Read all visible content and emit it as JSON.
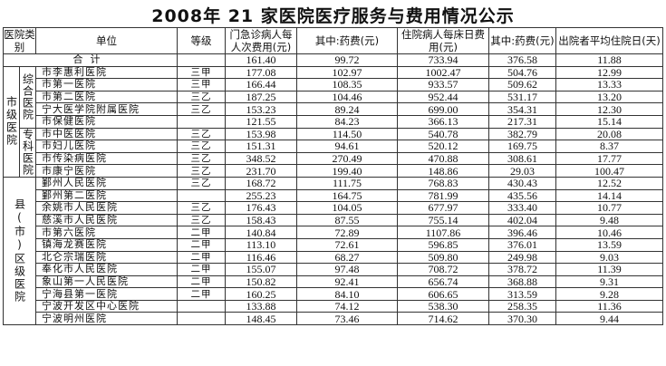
{
  "title": "2008年 21 家医院医疗服务与费用情况公示",
  "headers": {
    "category": "医院类别",
    "unit": "单位",
    "grade": "等级",
    "outpatient_cost": "门急诊病人每人次费用(元)",
    "outpatient_drug": "其中:药费(元)",
    "inpatient_cost": "住院病人每床日费用(元)",
    "inpatient_drug": "其中:药费(元)",
    "avg_stay": "出院者平均住院日(天)"
  },
  "total": {
    "label": "合计",
    "outpatient_cost": "161.40",
    "outpatient_drug": "99.72",
    "inpatient_cost": "733.94",
    "inpatient_drug": "376.58",
    "avg_stay": "11.88"
  },
  "groups": {
    "city_level": "市级医院",
    "comprehensive": "综合医院",
    "specialty": "专科医院",
    "county_level": "县(市)区级医院"
  },
  "rows": [
    {
      "unit": "市李惠利医院",
      "grade": "三甲",
      "oc": "177.08",
      "od": "102.97",
      "ic": "1002.47",
      "id": "504.76",
      "st": "12.99"
    },
    {
      "unit": "市第一医院",
      "grade": "三甲",
      "oc": "166.44",
      "od": "108.35",
      "ic": "933.57",
      "id": "509.62",
      "st": "13.33"
    },
    {
      "unit": "市第二医院",
      "grade": "三乙",
      "oc": "187.25",
      "od": "104.46",
      "ic": "952.44",
      "id": "531.17",
      "st": "13.20"
    },
    {
      "unit": "宁大医学院附属医院",
      "grade": "三乙",
      "oc": "153.23",
      "od": "89.24",
      "ic": "699.00",
      "id": "354.31",
      "st": "12.30"
    },
    {
      "unit": "市保健医院",
      "grade": "",
      "oc": "121.55",
      "od": "84.23",
      "ic": "366.13",
      "id": "217.31",
      "st": "15.14"
    },
    {
      "unit": "市中医医院",
      "grade": "三乙",
      "oc": "153.98",
      "od": "114.50",
      "ic": "540.78",
      "id": "382.79",
      "st": "20.08"
    },
    {
      "unit": "市妇儿医院",
      "grade": "三乙",
      "oc": "151.31",
      "od": "94.61",
      "ic": "520.12",
      "id": "169.75",
      "st": "8.37"
    },
    {
      "unit": "市传染病医院",
      "grade": "三乙",
      "oc": "348.52",
      "od": "270.49",
      "ic": "470.88",
      "id": "308.61",
      "st": "17.77"
    },
    {
      "unit": "市康宁医院",
      "grade": "三乙",
      "oc": "231.70",
      "od": "199.40",
      "ic": "148.86",
      "id": "29.03",
      "st": "100.47"
    },
    {
      "unit": "鄞州人民医院",
      "grade": "三乙",
      "oc": "168.72",
      "od": "111.75",
      "ic": "768.83",
      "id": "430.43",
      "st": "12.52"
    },
    {
      "unit": "鄞州第二医院",
      "grade": "",
      "oc": "255.23",
      "od": "164.75",
      "ic": "781.99",
      "id": "435.56",
      "st": "14.14"
    },
    {
      "unit": "余姚市人民医院",
      "grade": "三乙",
      "oc": "176.43",
      "od": "104.05",
      "ic": "677.97",
      "id": "333.40",
      "st": "10.77"
    },
    {
      "unit": "慈溪市人民医院",
      "grade": "三乙",
      "oc": "158.43",
      "od": "87.55",
      "ic": "755.14",
      "id": "402.04",
      "st": "9.48"
    },
    {
      "unit": "市第六医院",
      "grade": "二甲",
      "oc": "140.84",
      "od": "72.89",
      "ic": "1107.86",
      "id": "396.46",
      "st": "10.46"
    },
    {
      "unit": "镇海龙赛医院",
      "grade": "二甲",
      "oc": "113.10",
      "od": "72.61",
      "ic": "596.85",
      "id": "376.01",
      "st": "13.59"
    },
    {
      "unit": "北仑宗瑞医院",
      "grade": "二甲",
      "oc": "116.46",
      "od": "68.27",
      "ic": "509.80",
      "id": "249.98",
      "st": "9.03"
    },
    {
      "unit": "奉化市人民医院",
      "grade": "二甲",
      "oc": "155.07",
      "od": "97.48",
      "ic": "708.72",
      "id": "378.72",
      "st": "11.39"
    },
    {
      "unit": "象山第一人民医院",
      "grade": "二甲",
      "oc": "150.82",
      "od": "92.41",
      "ic": "656.74",
      "id": "368.88",
      "st": "9.31"
    },
    {
      "unit": "宁海县第一医院",
      "grade": "二甲",
      "oc": "160.25",
      "od": "84.10",
      "ic": "606.65",
      "id": "313.59",
      "st": "9.28"
    },
    {
      "unit": "宁波开发区中心医院",
      "grade": "",
      "oc": "133.88",
      "od": "74.12",
      "ic": "538.30",
      "id": "258.35",
      "st": "11.36"
    },
    {
      "unit": "宁波明州医院",
      "grade": "",
      "oc": "148.45",
      "od": "73.46",
      "ic": "714.62",
      "id": "370.30",
      "st": "9.44"
    }
  ]
}
